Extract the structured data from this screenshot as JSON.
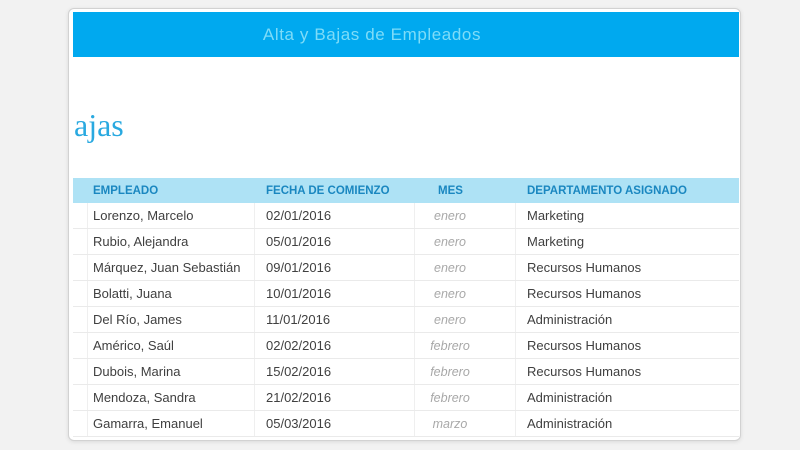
{
  "banner": {
    "title": "Alta y Bajas de Empleados"
  },
  "clipped_heading": "ajas",
  "table": {
    "columns": [
      "EMPLEADO",
      "FECHA DE COMIENZO",
      "MES",
      "DEPARTAMENTO ASIGNADO"
    ],
    "rows": [
      {
        "empleado": "Lorenzo, Marcelo",
        "fecha": "02/01/2016",
        "mes": "enero",
        "departamento": "Marketing"
      },
      {
        "empleado": "Rubio, Alejandra",
        "fecha": "05/01/2016",
        "mes": "enero",
        "departamento": "Marketing"
      },
      {
        "empleado": "Márquez, Juan Sebastián",
        "fecha": "09/01/2016",
        "mes": "enero",
        "departamento": "Recursos Humanos"
      },
      {
        "empleado": "Bolatti, Juana",
        "fecha": "10/01/2016",
        "mes": "enero",
        "departamento": "Recursos Humanos"
      },
      {
        "empleado": "Del Río, James",
        "fecha": "11/01/2016",
        "mes": "enero",
        "departamento": "Administración"
      },
      {
        "empleado": "Américo, Saúl",
        "fecha": "02/02/2016",
        "mes": "febrero",
        "departamento": "Recursos Humanos"
      },
      {
        "empleado": "Dubois, Marina",
        "fecha": "15/02/2016",
        "mes": "febrero",
        "departamento": "Recursos Humanos"
      },
      {
        "empleado": "Mendoza, Sandra",
        "fecha": "21/02/2016",
        "mes": "febrero",
        "departamento": "Administración"
      },
      {
        "empleado": "Gamarra, Emanuel",
        "fecha": "05/03/2016",
        "mes": "marzo",
        "departamento": "Administración"
      }
    ]
  },
  "colors": {
    "page_background": "#f2f2f2",
    "card_background": "#ffffff",
    "banner_background": "#00a9ef",
    "banner_text": "#7edcf8",
    "header_row_background": "#aee2f5",
    "header_row_text": "#1a87c0",
    "body_text": "#404040",
    "month_text": "#a8a8a8",
    "heading_text": "#29a9e0"
  }
}
